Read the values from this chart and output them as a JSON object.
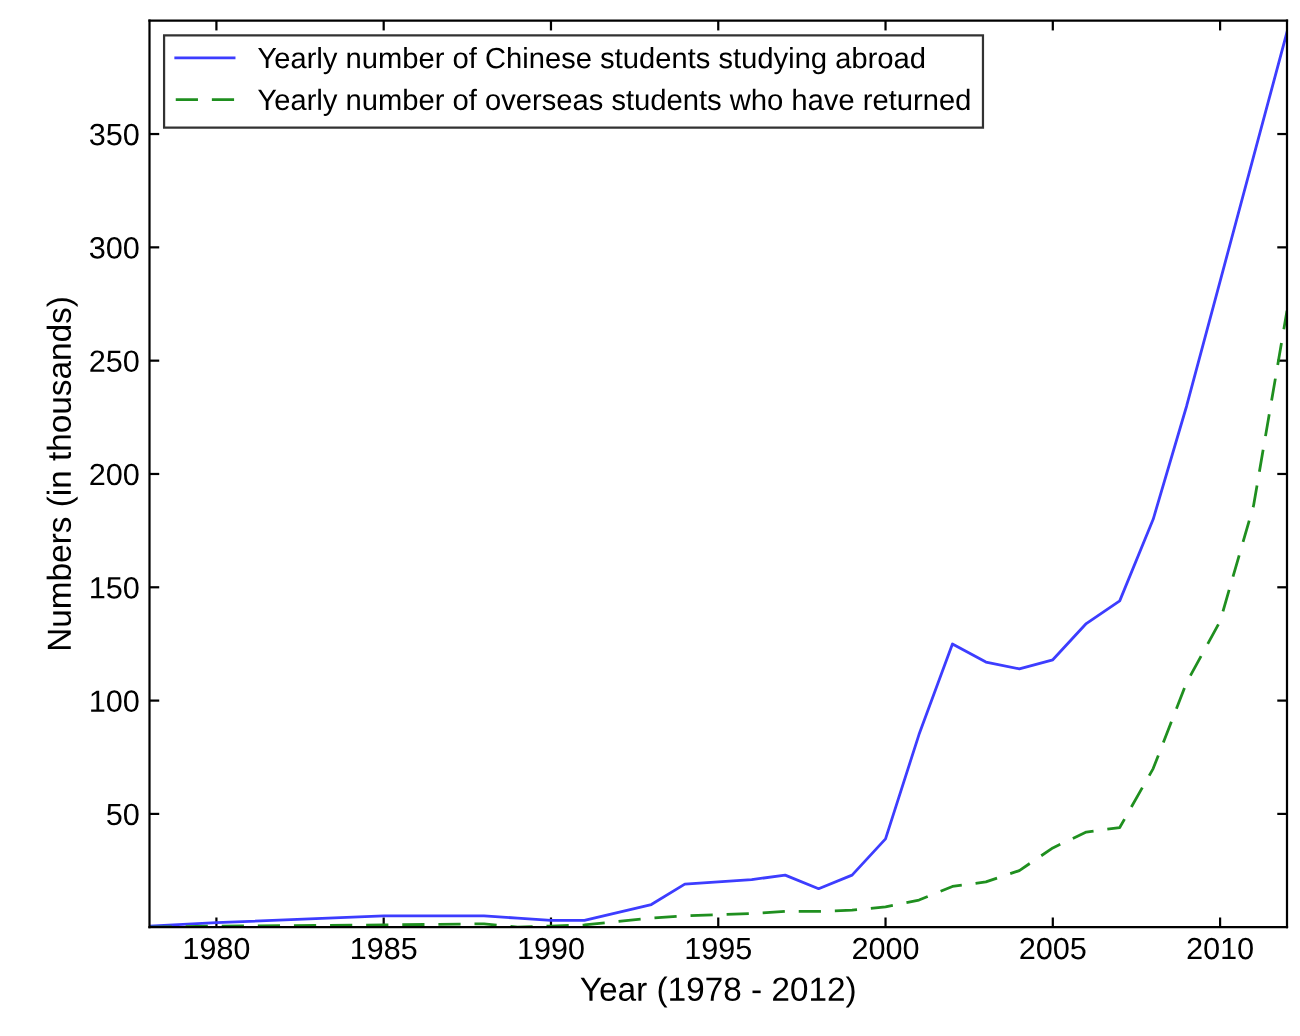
{
  "chart_data": {
    "type": "line",
    "xlabel": "Year (1978 - 2012)",
    "ylabel": "Numbers (in thousands)",
    "x": [
      1978,
      1980,
      1985,
      1988,
      1989,
      1990,
      1991,
      1993,
      1994,
      1995,
      1996,
      1997,
      1998,
      1999,
      2000,
      2001,
      2002,
      2003,
      2004,
      2005,
      2006,
      2007,
      2008,
      2009,
      2010,
      2011,
      2012
    ],
    "series": [
      {
        "name": "Yearly number of Chinese students studying abroad",
        "color": "#3d3dff",
        "line_style": "solid",
        "values": [
          0.5,
          2,
          5,
          5,
          4,
          3,
          3,
          10,
          19,
          20,
          21,
          23,
          17,
          23,
          39,
          85,
          125,
          117,
          114,
          118,
          134,
          144,
          180,
          230,
          285,
          340,
          395
        ]
      },
      {
        "name": "Yearly number of overseas students who have returned",
        "color": "#1f8f1f",
        "line_style": "dashed",
        "values": [
          0,
          0.5,
          1,
          1.5,
          0,
          0.5,
          1,
          4,
          5,
          5.5,
          6,
          7,
          7,
          7.5,
          9,
          12,
          18,
          20,
          25,
          35,
          42,
          44,
          70,
          108,
          135,
          186,
          272
        ]
      }
    ],
    "xlim": [
      1978,
      2012
    ],
    "ylim": [
      0,
      400
    ],
    "xticks": [
      1980,
      1985,
      1990,
      1995,
      2000,
      2005,
      2010
    ],
    "yticks": [
      50,
      100,
      150,
      200,
      250,
      300,
      350
    ],
    "grid": false,
    "legend": "top left",
    "marker": "none"
  }
}
